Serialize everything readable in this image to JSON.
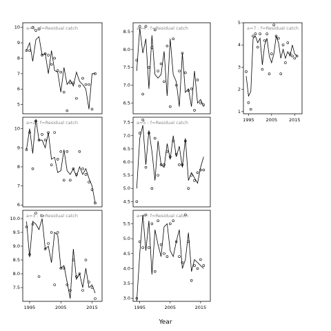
{
  "x_label": "Year",
  "chart_data": [
    {
      "type": "line",
      "title": "a=1 : f=Residual catch",
      "xlim": [
        1992.8,
        2018.2
      ],
      "ylim": [
        4.4,
        10.3
      ],
      "yticks": [
        5,
        6,
        7,
        8,
        9,
        10
      ],
      "x": [
        1994,
        1995,
        1996,
        1997,
        1998,
        1999,
        2000,
        2001,
        2002,
        2003,
        2004,
        2005,
        2006,
        2007,
        2008,
        2009,
        2010,
        2011,
        2012,
        2013,
        2014,
        2015,
        2016
      ],
      "series": [
        {
          "style": "points",
          "color": "#000000",
          "values": [
            8.5,
            8.5,
            10.0,
            9.8,
            9.9,
            8.2,
            8.3,
            8.2,
            7.6,
            8.0,
            7.2,
            7.1,
            5.8,
            4.6,
            6.4,
            6.4,
            5.4,
            6.2,
            6.7,
            6.3,
            6.3,
            4.7,
            7.0
          ]
        },
        {
          "style": "line",
          "color": "#000000",
          "values": [
            8.5,
            9.0,
            7.8,
            9.2,
            9.4,
            8.2,
            8.3,
            7.0,
            8.5,
            7.2,
            7.1,
            5.8,
            7.4,
            6.3,
            6.6,
            6.2,
            7.1,
            6.5,
            6.3,
            6.0,
            4.7,
            7.0,
            7.0
          ]
        }
      ]
    },
    {
      "type": "line",
      "title": "a=2 : f=Residual catch",
      "xlim": [
        1992.8,
        2018.2
      ],
      "ylim": [
        5.9,
        10.6
      ],
      "yticks": [
        6,
        7,
        8,
        9,
        10
      ],
      "x": [
        1994,
        1995,
        1996,
        1997,
        1998,
        1999,
        2000,
        2001,
        2002,
        2003,
        2004,
        2005,
        2006,
        2007,
        2008,
        2009,
        2010,
        2011,
        2012,
        2013,
        2014,
        2015,
        2016
      ],
      "series": [
        {
          "style": "points",
          "color": "#000000",
          "values": [
            8.9,
            9.8,
            7.9,
            10.4,
            9.4,
            9.7,
            9.4,
            9.8,
            8.1,
            9.8,
            8.4,
            8.8,
            7.3,
            8.8,
            7.3,
            7.9,
            7.6,
            8.8,
            7.9,
            7.6,
            7.2,
            6.8,
            6.1
          ]
        },
        {
          "style": "line",
          "color": "#000000",
          "values": [
            8.9,
            10.0,
            8.7,
            10.5,
            9.4,
            9.4,
            9.0,
            9.8,
            8.4,
            8.5,
            7.7,
            7.8,
            8.9,
            7.8,
            7.6,
            7.9,
            7.5,
            8.0,
            7.6,
            7.9,
            7.4,
            7.0,
            6.1
          ]
        }
      ]
    },
    {
      "type": "line",
      "title": "a=3 : f=Residual catch",
      "xlim": [
        1992.8,
        2018.2
      ],
      "ylim": [
        7.0,
        10.3
      ],
      "yticks": [
        {
          "value": 7.5,
          "label": "7.5"
        },
        {
          "value": 8,
          "label": "8.0"
        },
        {
          "value": 8.5,
          "label": "8.5"
        },
        {
          "value": 9,
          "label": "9.0"
        },
        {
          "value": 9.5,
          "label": "9.5"
        },
        {
          "value": 10,
          "label": "10.0"
        }
      ],
      "xticks": [
        1995,
        2005,
        2015
      ],
      "x": [
        1994,
        1995,
        1996,
        1997,
        1998,
        1999,
        2000,
        2001,
        2002,
        2003,
        2004,
        2005,
        2006,
        2007,
        2008,
        2009,
        2010,
        2011,
        2012,
        2013,
        2014,
        2015,
        2016
      ],
      "series": [
        {
          "style": "points",
          "color": "#000000",
          "values": [
            9.7,
            8.7,
            9.8,
            10.2,
            7.9,
            10.1,
            8.9,
            9.1,
            9.5,
            7.6,
            9.5,
            8.2,
            8.2,
            7.6,
            7.4,
            8.5,
            7.9,
            8.0,
            7.4,
            8.5,
            7.7,
            7.5,
            7.1
          ]
        },
        {
          "style": "line",
          "color": "#000000",
          "values": [
            9.9,
            8.6,
            9.9,
            9.8,
            9.6,
            10.0,
            8.9,
            9.0,
            8.4,
            9.5,
            9.4,
            8.2,
            8.3,
            7.7,
            7.1,
            8.9,
            7.8,
            8.0,
            7.5,
            8.2,
            7.5,
            7.6,
            7.3
          ]
        }
      ]
    },
    {
      "type": "line",
      "title": "a=4 : f=Residual catch",
      "xlim": [
        1992.8,
        2018.2
      ],
      "ylim": [
        6.2,
        8.75
      ],
      "yticks": [
        {
          "value": 6.5,
          "label": "6.5"
        },
        {
          "value": 7,
          "label": "7.0"
        },
        {
          "value": 7.5,
          "label": "7.5"
        },
        {
          "value": 8,
          "label": "8.0"
        },
        {
          "value": 8.5,
          "label": "8.5"
        }
      ],
      "x": [
        1994,
        1995,
        1996,
        1997,
        1998,
        1999,
        2000,
        2001,
        2002,
        2003,
        2004,
        2005,
        2006,
        2007,
        2008,
        2009,
        2010,
        2011,
        2012,
        2013,
        2014,
        2015,
        2016
      ],
      "series": [
        {
          "style": "points",
          "color": "#000000",
          "values": [
            7.7,
            8.65,
            6.75,
            8.65,
            7.5,
            8.05,
            8.55,
            7.4,
            7.6,
            7.1,
            8.1,
            6.4,
            8.3,
            7.0,
            7.4,
            7.9,
            7.35,
            6.85,
            6.9,
            6.3,
            7.15,
            6.5,
            6.45
          ]
        },
        {
          "style": "line",
          "color": "#000000",
          "values": [
            7.4,
            8.6,
            7.9,
            8.3,
            6.9,
            8.4,
            7.3,
            7.2,
            7.3,
            7.95,
            6.7,
            8.3,
            7.3,
            7.1,
            6.4,
            7.9,
            6.8,
            6.9,
            6.4,
            7.4,
            6.5,
            6.6,
            6.4
          ]
        }
      ]
    },
    {
      "type": "line",
      "title": "a=5 : f=Residual catch",
      "xlim": [
        1992.8,
        2018.2
      ],
      "ylim": [
        4.3,
        7.7
      ],
      "yticks": [
        {
          "value": 4.5,
          "label": "4.5"
        },
        {
          "value": 5,
          "label": "5.0"
        },
        {
          "value": 5.5,
          "label": "5.5"
        },
        {
          "value": 6,
          "label": "6.0"
        },
        {
          "value": 6.5,
          "label": "6.5"
        },
        {
          "value": 7,
          "label": "7.0"
        },
        {
          "value": 7.5,
          "label": "7.5"
        }
      ],
      "x": [
        1994,
        1995,
        1996,
        1997,
        1998,
        1999,
        2000,
        2001,
        2002,
        2003,
        2004,
        2005,
        2006,
        2007,
        2008,
        2009,
        2010,
        2011,
        2012,
        2013,
        2014,
        2015,
        2016
      ],
      "series": [
        {
          "style": "points",
          "color": "#000000",
          "values": [
            4.5,
            7.1,
            7.6,
            5.8,
            7.1,
            5.0,
            6.9,
            5.5,
            5.9,
            5.9,
            6.4,
            6.2,
            6.8,
            6.3,
            5.9,
            5.9,
            6.8,
            5.0,
            5.5,
            5.3,
            5.6,
            5.7,
            5.7
          ]
        },
        {
          "style": "line",
          "color": "#000000",
          "values": [
            5.0,
            6.9,
            7.4,
            5.9,
            7.2,
            6.4,
            5.3,
            6.8,
            5.9,
            5.8,
            6.7,
            6.1,
            7.0,
            6.2,
            6.6,
            5.8,
            6.9,
            5.3,
            5.6,
            5.4,
            5.2,
            5.8,
            6.2
          ]
        }
      ]
    },
    {
      "type": "line",
      "title": "a=6 : f=Residual catch",
      "xlim": [
        1992.8,
        2018.2
      ],
      "ylim": [
        2.9,
        5.95
      ],
      "yticks": [
        {
          "value": 3,
          "label": "3.0"
        },
        {
          "value": 3.5,
          "label": "3.5"
        },
        {
          "value": 4,
          "label": "4.0"
        },
        {
          "value": 4.5,
          "label": "4.5"
        },
        {
          "value": 5,
          "label": "5.0"
        },
        {
          "value": 5.5,
          "label": "5.5"
        }
      ],
      "xticks": [
        1995,
        2005,
        2015
      ],
      "x": [
        1994,
        1995,
        1996,
        1997,
        1998,
        1999,
        2000,
        2001,
        2002,
        2003,
        2004,
        2005,
        2006,
        2007,
        2008,
        2009,
        2010,
        2011,
        2012,
        2013,
        2014,
        2015,
        2016
      ],
      "series": [
        {
          "style": "points",
          "color": "#000000",
          "values": [
            3.0,
            4.9,
            4.7,
            5.8,
            4.7,
            5.5,
            3.9,
            5.6,
            4.8,
            4.5,
            4.4,
            5.5,
            5.6,
            4.9,
            4.4,
            4.2,
            5.8,
            4.9,
            3.6,
            4.1,
            4.0,
            4.3,
            4.1
          ]
        },
        {
          "style": "line",
          "color": "#000000",
          "values": [
            2.9,
            4.5,
            5.8,
            4.6,
            5.6,
            3.8,
            5.3,
            4.8,
            4.4,
            5.4,
            5.5,
            4.6,
            4.4,
            4.9,
            5.3,
            4.0,
            4.3,
            5.2,
            3.9,
            4.3,
            4.2,
            4.1,
            4.0
          ]
        }
      ]
    },
    {
      "type": "line",
      "title": "a=7 : f=Residual catch",
      "xlim": [
        1992.8,
        2018.2
      ],
      "ylim": [
        0.9,
        5.0
      ],
      "yticks": [
        1,
        2,
        3,
        4,
        5
      ],
      "xticks": [
        1995,
        2005,
        2015
      ],
      "x": [
        1994,
        1995,
        1996,
        1997,
        1998,
        1999,
        2000,
        2001,
        2002,
        2003,
        2004,
        2005,
        2006,
        2007,
        2008,
        2009,
        2010,
        2011,
        2012,
        2013,
        2014,
        2015,
        2016
      ],
      "series": [
        {
          "style": "points",
          "color": "#000000",
          "values": [
            2.8,
            1.4,
            1.1,
            4.4,
            4.5,
            3.9,
            4.5,
            2.9,
            4.2,
            4.5,
            2.7,
            3.6,
            4.9,
            4.4,
            4.3,
            2.7,
            4.0,
            3.2,
            4.1,
            3.6,
            3.5,
            3.4,
            3.5
          ]
        },
        {
          "style": "line",
          "color": "#000000",
          "values": [
            2.6,
            1.7,
            1.9,
            4.3,
            4.4,
            4.1,
            4.3,
            3.1,
            4.0,
            4.3,
            3.5,
            3.2,
            3.6,
            4.4,
            4.1,
            3.4,
            3.8,
            3.4,
            3.7,
            3.5,
            4.0,
            3.6,
            3.5
          ]
        }
      ]
    }
  ]
}
